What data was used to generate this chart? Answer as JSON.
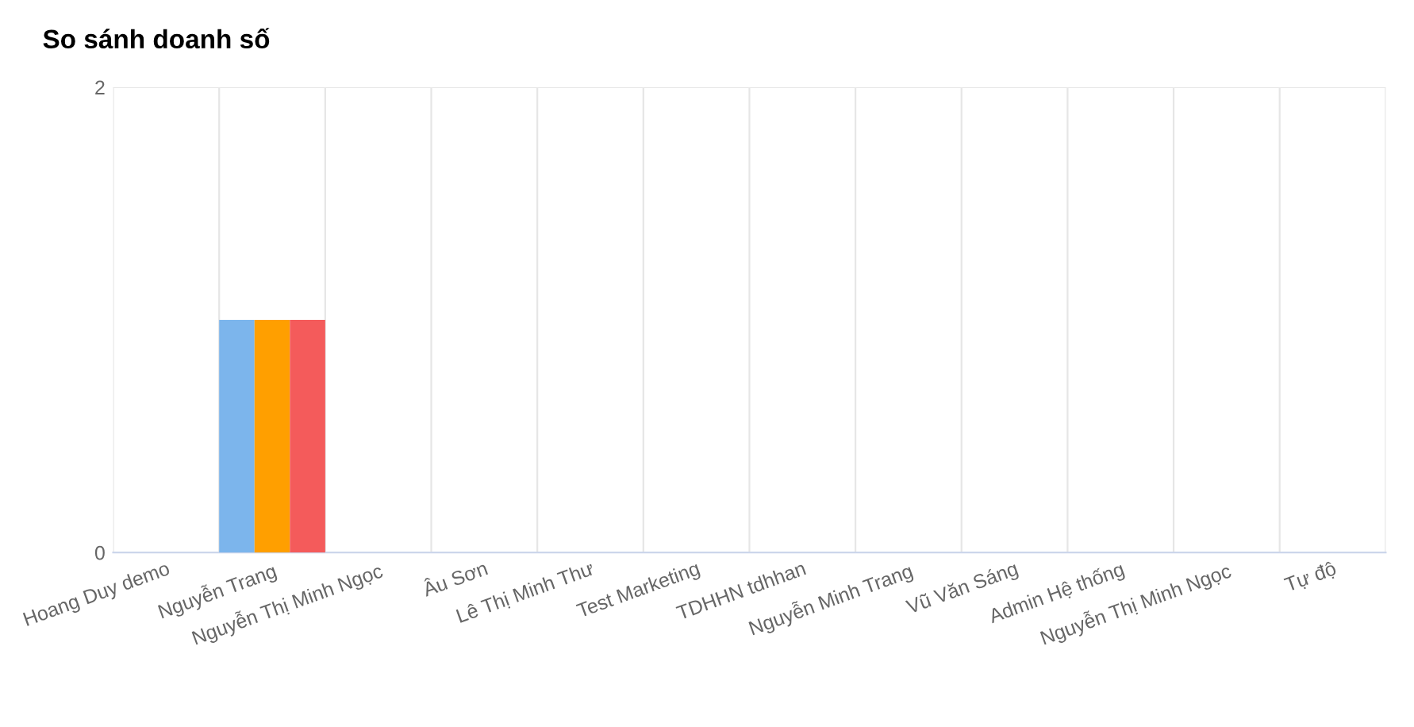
{
  "chart_data": {
    "type": "bar",
    "title": "So sánh doanh số",
    "categories": [
      "Hoang Duy demo",
      "Nguyễn Trang",
      "Nguyễn Thị Minh Ngọc",
      "Âu Sơn",
      "Lê Thị Minh Thư",
      "Test Marketing",
      "TDHHN tdhhan",
      "Nguyễn Minh Trang",
      "Vũ Văn Sáng",
      "Admin Hệ thống",
      "Nguyễn Thị Minh Ngọc",
      "Tự độ"
    ],
    "series": [
      {
        "color": "#7cb5ec",
        "values": [
          0,
          1,
          0,
          0,
          0,
          0,
          0,
          0,
          0,
          0,
          0,
          0
        ]
      },
      {
        "color": "#ff9f00",
        "values": [
          0,
          1,
          0,
          0,
          0,
          0,
          0,
          0,
          0,
          0,
          0,
          0
        ]
      },
      {
        "color": "#f45b5b",
        "values": [
          0,
          1,
          0,
          0,
          0,
          0,
          0,
          0,
          0,
          0,
          0,
          0
        ]
      }
    ],
    "ylim": [
      0,
      2
    ],
    "yticks": [
      0,
      2
    ],
    "grid": true
  }
}
